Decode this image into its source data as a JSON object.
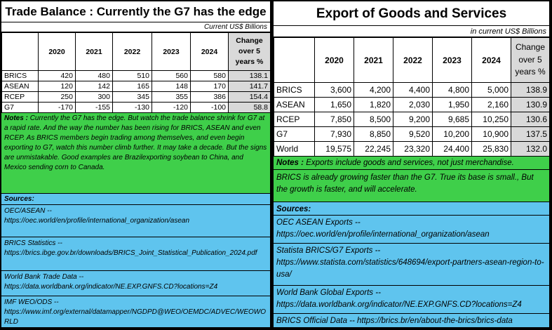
{
  "left": {
    "title": "Trade Balance : Currently the G7 has the edge",
    "currency": "Current US$ Billions",
    "headers": [
      "",
      "2020",
      "2021",
      "2022",
      "2023",
      "2024",
      "Change over 5 years %"
    ],
    "rows": [
      {
        "label": "BRICS",
        "values": [
          "420",
          "480",
          "510",
          "560",
          "580"
        ],
        "change": "138.1"
      },
      {
        "label": "ASEAN",
        "values": [
          "120",
          "142",
          "165",
          "148",
          "170"
        ],
        "change": "141.7"
      },
      {
        "label": "RCEP",
        "values": [
          "250",
          "300",
          "345",
          "355",
          "386"
        ],
        "change": "154.4"
      },
      {
        "label": "G7",
        "values": [
          "-170",
          "-155",
          "-130",
          "-120",
          "-100"
        ],
        "change": "58.8"
      }
    ],
    "notes_label": "Notes :",
    "notes_text": "Currently the G7 has the edge.  But watch the trade balance shrink for G7 at a rapid rate.  And the way the number has been rising for BRICS, ASEAN and even RCEP. As BRICS members begin trading among themselves, and even begin exporting to G7, watch this number climb further.  It may take a decade.  But the signs are unmistakable. Good examples are Brazilexporting soybean to China, and Mexico sending corn to Canada.",
    "sources_label": "Sources:",
    "sources": [
      {
        "title": "OEC/ASEAN --",
        "url": "https://oec.world/en/profile/international_organization/asean"
      },
      {
        "title": "BRICS Statistics --",
        "url": "https://brics.ibge.gov.br/downloads/BRICS_Joint_Statistical_Publication_2024.pdf"
      },
      {
        "title": "World Bank Trade Data --",
        "url": "https://data.worldbank.org/indicator/NE.EXP.GNFS.CD?locations=Z4"
      },
      {
        "title": "IMF WEO/ODS --",
        "url": "https://www.imf.org/external/datamapper/NGDPD@WEO/OEMDC/ADVEC/WEOWORLD"
      }
    ]
  },
  "right": {
    "title": "Export of Goods and Services",
    "currency": "in current US$ Billions",
    "headers": [
      "",
      "2020",
      "2021",
      "2022",
      "2023",
      "2024",
      "Change over 5 years %"
    ],
    "rows": [
      {
        "label": "BRICS",
        "values": [
          "3,600",
          "4,200",
          "4,400",
          "4,800",
          "5,000"
        ],
        "change": "138.9"
      },
      {
        "label": "ASEAN",
        "values": [
          "1,650",
          "1,820",
          "2,030",
          "1,950",
          "2,160"
        ],
        "change": "130.9"
      },
      {
        "label": "RCEP",
        "values": [
          "7,850",
          "8,500",
          "9,200",
          "9,685",
          "10,250"
        ],
        "change": "130.6"
      },
      {
        "label": "G7",
        "values": [
          "7,930",
          "8,850",
          "9,520",
          "10,200",
          "10,900"
        ],
        "change": "137.5"
      },
      {
        "label": "World",
        "values": [
          "19,575",
          "22,245",
          "23,320",
          "24,400",
          "25,830"
        ],
        "change": "132.0"
      }
    ],
    "notes_label": "Notes :",
    "notes_text": "Exports include goods and services, not just merchandise.",
    "notes2": "BRICS is already growing faster than the G7.  True its base is small.,  But the growth is faster, and will accelerate.",
    "sources_label": "Sources:",
    "sources": [
      {
        "title": "OEC ASEAN Exports --",
        "url": "https://oec.world/en/profile/international_organization/asean"
      },
      {
        "title": "Statista BRICS/G7 Exports --",
        "url": "https://www.statista.com/statistics/648694/export-partners-asean-region-to-usa/"
      },
      {
        "title": "World Bank Global Exports --",
        "url": "https://data.worldbank.org/indicator/NE.EXP.GNFS.CD?locations=Z4"
      }
    ],
    "last_source": "BRICS Official Data -- https://brics.br/en/about-the-brics/brics-data"
  }
}
